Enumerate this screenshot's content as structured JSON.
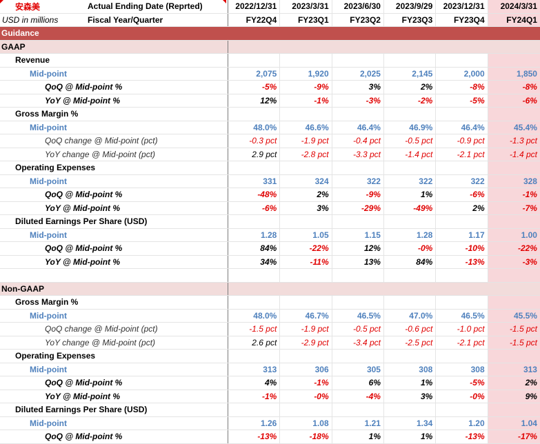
{
  "header": {
    "company": "安森美",
    "units": "USD in millions",
    "row1_label": "Actual Ending Date (Reprted)",
    "row2_label": "Fiscal Year/Quarter",
    "dates": [
      "2022/12/31",
      "2023/3/31",
      "2023/6/30",
      "2023/9/29",
      "2023/12/31",
      "2024/3/31"
    ],
    "quarters": [
      "FY22Q4",
      "FY23Q1",
      "FY23Q2",
      "FY23Q3",
      "FY23Q4",
      "FY24Q1"
    ]
  },
  "rows": [
    {
      "kind": "band-dark",
      "label": "Guidance"
    },
    {
      "kind": "band-light",
      "label": "GAAP"
    },
    {
      "kind": "lvl1",
      "label": "Revenue"
    },
    {
      "kind": "lvl2",
      "label": "Mid-point",
      "style": "blue",
      "values": [
        "2,075",
        "1,920",
        "2,025",
        "2,145",
        "2,000",
        "1,850"
      ]
    },
    {
      "kind": "lvl3b",
      "label": "QoQ @ Mid-point %",
      "style": "bold",
      "values": [
        "-5%",
        "-9%",
        "3%",
        "2%",
        "-8%",
        "-8%"
      ]
    },
    {
      "kind": "lvl3b",
      "label": "YoY @ Mid-point %",
      "style": "bold",
      "values": [
        "12%",
        "-1%",
        "-3%",
        "-2%",
        "-5%",
        "-6%"
      ]
    },
    {
      "kind": "lvl1",
      "label": "Gross Margin %"
    },
    {
      "kind": "lvl2",
      "label": "Mid-point",
      "style": "blue",
      "values": [
        "48.0%",
        "46.6%",
        "46.4%",
        "46.9%",
        "46.4%",
        "45.4%"
      ]
    },
    {
      "kind": "lvl3i",
      "label": "QoQ change @ Mid-point (pct)",
      "style": "it",
      "values": [
        "-0.3 pct",
        "-1.9 pct",
        "-0.4 pct",
        "-0.5 pct",
        "-0.9 pct",
        "-1.3 pct"
      ]
    },
    {
      "kind": "lvl3i",
      "label": "YoY change @ Mid-point (pct)",
      "style": "it",
      "values": [
        "2.9 pct",
        "-2.8 pct",
        "-3.3 pct",
        "-1.4 pct",
        "-2.1 pct",
        "-1.4 pct"
      ]
    },
    {
      "kind": "lvl1",
      "label": "Operating Expenses"
    },
    {
      "kind": "lvl2",
      "label": "Mid-point",
      "style": "blue",
      "values": [
        "331",
        "324",
        "322",
        "322",
        "322",
        "328"
      ]
    },
    {
      "kind": "lvl3b",
      "label": "QoQ @ Mid-point %",
      "style": "bold",
      "values": [
        "-48%",
        "2%",
        "-9%",
        "1%",
        "-6%",
        "-1%"
      ]
    },
    {
      "kind": "lvl3b",
      "label": "YoY @ Mid-point %",
      "style": "bold",
      "values": [
        "-6%",
        "3%",
        "-29%",
        "-49%",
        "2%",
        "-7%"
      ]
    },
    {
      "kind": "lvl1",
      "label": "Diluted Earnings Per Share (USD)"
    },
    {
      "kind": "lvl2",
      "label": "Mid-point",
      "style": "blue",
      "values": [
        "1.28",
        "1.05",
        "1.15",
        "1.28",
        "1.17",
        "1.00"
      ]
    },
    {
      "kind": "lvl3b",
      "label": "QoQ @ Mid-point %",
      "style": "bold",
      "values": [
        "84%",
        "-22%",
        "12%",
        "-0%",
        "-10%",
        "-22%"
      ]
    },
    {
      "kind": "lvl3b",
      "label": "YoY @ Mid-point %",
      "style": "bold",
      "values": [
        "34%",
        "-11%",
        "13%",
        "84%",
        "-13%",
        "-3%"
      ]
    },
    {
      "kind": "blank",
      "label": ""
    },
    {
      "kind": "band-light",
      "label": "Non-GAAP"
    },
    {
      "kind": "lvl1",
      "label": "Gross Margin %"
    },
    {
      "kind": "lvl2",
      "label": "Mid-point",
      "style": "blue",
      "values": [
        "48.0%",
        "46.7%",
        "46.5%",
        "47.0%",
        "46.5%",
        "45.5%"
      ]
    },
    {
      "kind": "lvl3i",
      "label": "QoQ change @ Mid-point (pct)",
      "style": "it",
      "values": [
        "-1.5 pct",
        "-1.9 pct",
        "-0.5 pct",
        "-0.6 pct",
        "-1.0 pct",
        "-1.5 pct"
      ]
    },
    {
      "kind": "lvl3i",
      "label": "YoY change @ Mid-point (pct)",
      "style": "it",
      "values": [
        "2.6 pct",
        "-2.9 pct",
        "-3.4 pct",
        "-2.5 pct",
        "-2.1 pct",
        "-1.5 pct"
      ]
    },
    {
      "kind": "lvl1",
      "label": "Operating Expenses"
    },
    {
      "kind": "lvl2",
      "label": "Mid-point",
      "style": "blue",
      "values": [
        "313",
        "306",
        "305",
        "308",
        "308",
        "313"
      ]
    },
    {
      "kind": "lvl3b",
      "label": "QoQ @ Mid-point %",
      "style": "bold",
      "values": [
        "4%",
        "-1%",
        "6%",
        "1%",
        "-5%",
        "2%"
      ]
    },
    {
      "kind": "lvl3b",
      "label": "YoY @ Mid-point %",
      "style": "bold",
      "values": [
        "-1%",
        "-0%",
        "-4%",
        "3%",
        "-0%",
        "9%"
      ]
    },
    {
      "kind": "lvl1",
      "label": "Diluted Earnings Per Share (USD)"
    },
    {
      "kind": "lvl2",
      "label": "Mid-point",
      "style": "blue",
      "values": [
        "1.26",
        "1.08",
        "1.21",
        "1.34",
        "1.20",
        "1.04"
      ]
    },
    {
      "kind": "lvl3b",
      "label": "QoQ @ Mid-point %",
      "style": "bold",
      "values": [
        "-13%",
        "-18%",
        "1%",
        "1%",
        "-13%",
        "-17%"
      ]
    }
  ],
  "colors": {
    "section_band": "#c0504d",
    "subsection_band": "#f2dcdb",
    "highlight_column": "#f8d7da",
    "negative": "#e00000",
    "midpoint": "#4f81bd"
  }
}
